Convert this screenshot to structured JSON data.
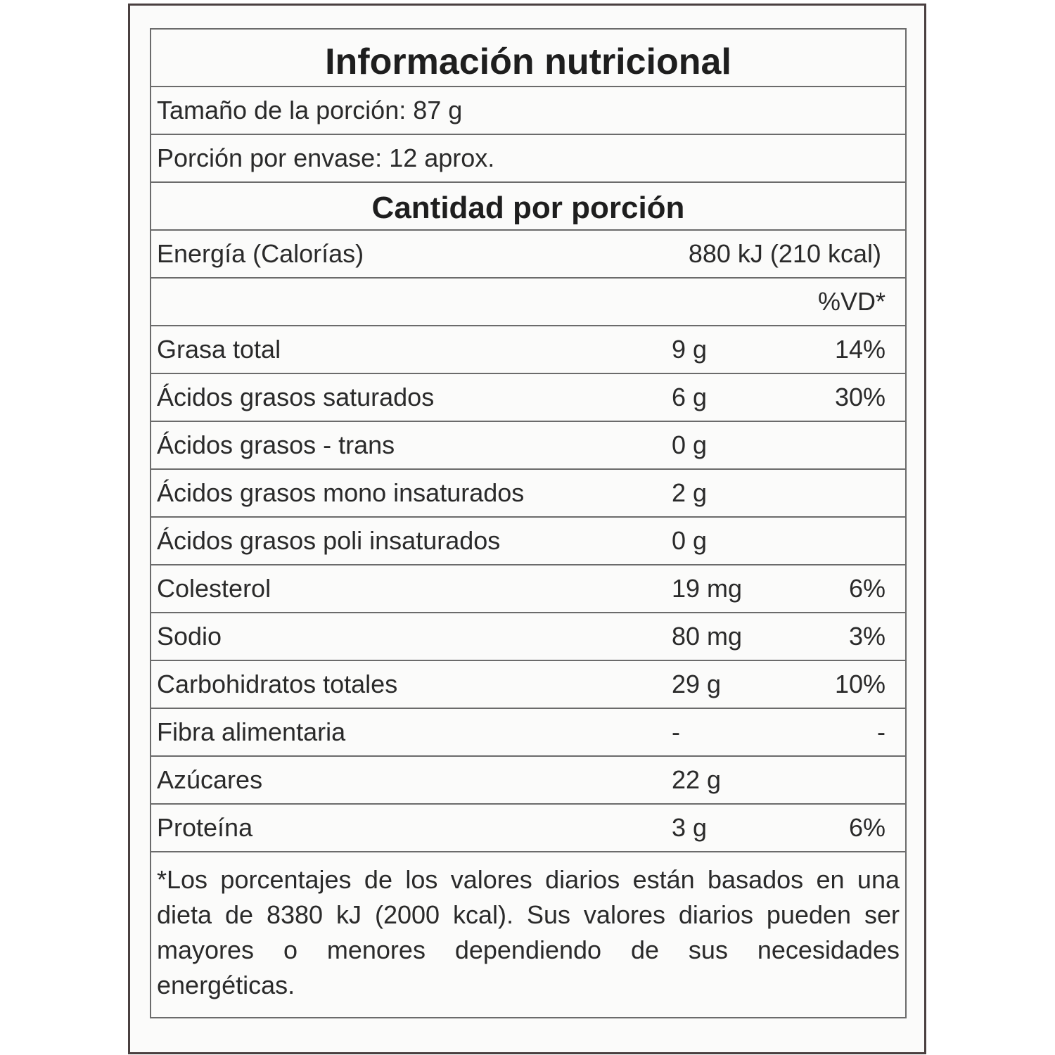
{
  "title": "Información nutricional",
  "serving_size": "Tamaño de la porción: 87 g",
  "servings_per_container": "Porción por envase: 12 aprox.",
  "amount_header": "Cantidad por porción",
  "energy": {
    "label": "Energía (Calorías)",
    "value": "880 kJ (210 kcal)"
  },
  "dv_header": "%VD*",
  "nutrients": [
    {
      "label": "Grasa total",
      "value": "9 g",
      "dv": "14%"
    },
    {
      "label": "Ácidos grasos saturados",
      "value": "6 g",
      "dv": "30%"
    },
    {
      "label": "Ácidos grasos - trans",
      "value": "0 g",
      "dv": ""
    },
    {
      "label": "Ácidos grasos mono insaturados",
      "value": "2 g",
      "dv": ""
    },
    {
      "label": "Ácidos grasos poli insaturados",
      "value": "0 g",
      "dv": ""
    },
    {
      "label": "Colesterol",
      "value": "19 mg",
      "dv": "6%"
    },
    {
      "label": "Sodio",
      "value": "80 mg",
      "dv": "3%"
    },
    {
      "label": "Carbohidratos totales",
      "value": "29 g",
      "dv": "10%"
    },
    {
      "label": "Fibra alimentaria",
      "value": "-",
      "dv": "-"
    },
    {
      "label": "Azúcares",
      "value": "22 g",
      "dv": ""
    },
    {
      "label": "Proteína",
      "value": "3 g",
      "dv": "6%"
    }
  ],
  "footnote": "*Los porcentajes de los valores diarios están basados en una dieta de 8380 kJ (2000 kcal). Sus valores diarios pueden ser mayores o menores dependiendo de sus necesidades energéticas."
}
